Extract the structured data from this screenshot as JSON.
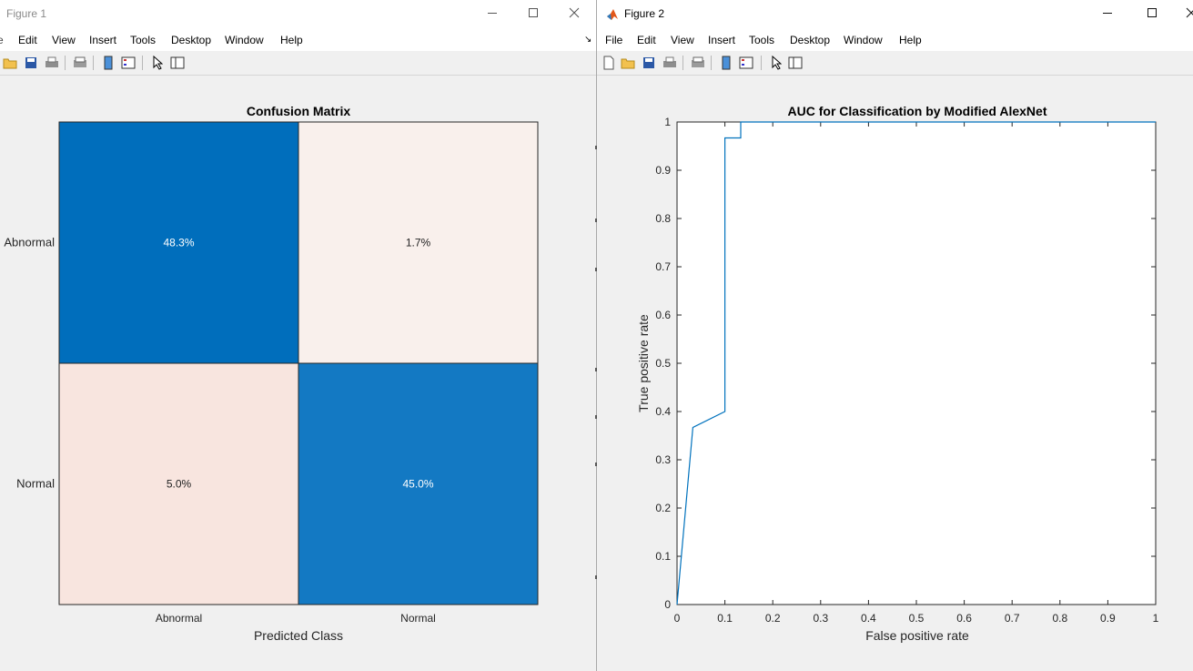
{
  "figure1": {
    "title": "Figure 1",
    "menu": [
      "Edit",
      "View",
      "Insert",
      "Tools",
      "Desktop",
      "Window",
      "Help"
    ],
    "colors": {
      "dark_cell": "#006ebc",
      "mid_cell": "#1379c3",
      "light_cell_1": "#f9f0ec",
      "light_cell_2": "#f8e5df"
    },
    "toolbar_icons": [
      "open-icon",
      "save-icon",
      "print-icon",
      "print-preview-icon",
      "colorbar-icon",
      "legend-icon",
      "pointer-icon",
      "property-editor-icon"
    ],
    "chart_data": {
      "type": "heatmap",
      "title": "Confusion Matrix",
      "xlabel": "Predicted Class",
      "ylabel": "",
      "rows": [
        "Abnormal",
        "Normal"
      ],
      "columns": [
        "Abnormal",
        "Normal"
      ],
      "values": [
        [
          48.3,
          1.7
        ],
        [
          5.0,
          45.0
        ]
      ],
      "labels": [
        [
          "48.3%",
          "1.7%"
        ],
        [
          "5.0%",
          "45.0%"
        ]
      ]
    }
  },
  "figure2": {
    "title": "Figure 2",
    "menu": [
      "File",
      "Edit",
      "View",
      "Insert",
      "Tools",
      "Desktop",
      "Window",
      "Help"
    ],
    "colors": {
      "line": "#0072bd"
    },
    "toolbar_icons": [
      "new-figure-icon",
      "open-icon",
      "save-icon",
      "print-icon",
      "print-preview-icon",
      "colorbar-icon",
      "legend-icon",
      "pointer-icon",
      "property-editor-icon"
    ],
    "chart_data": {
      "type": "line",
      "title": "AUC for Classification by Modified AlexNet",
      "xlabel": "False positive rate",
      "ylabel": "True positive rate",
      "xlim": [
        0,
        1
      ],
      "ylim": [
        0,
        1
      ],
      "xticks": [
        "0",
        "0.1",
        "0.2",
        "0.3",
        "0.4",
        "0.5",
        "0.6",
        "0.7",
        "0.8",
        "0.9",
        "1"
      ],
      "yticks": [
        "0",
        "0.1",
        "0.2",
        "0.3",
        "0.4",
        "0.5",
        "0.6",
        "0.7",
        "0.8",
        "0.9",
        "1"
      ],
      "series": [
        {
          "x": [
            0,
            0.033,
            0.1,
            0.1,
            0.133,
            0.133,
            1
          ],
          "y": [
            0,
            0.367,
            0.4,
            0.967,
            0.967,
            1,
            1
          ]
        }
      ]
    }
  }
}
